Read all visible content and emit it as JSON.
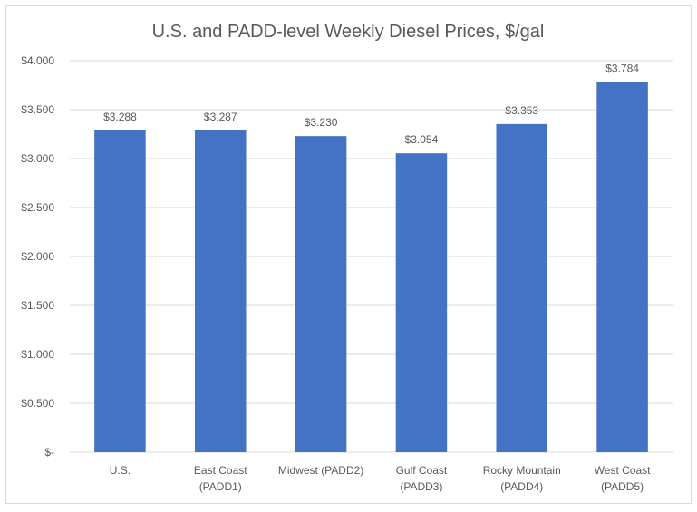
{
  "chart_data": {
    "type": "bar",
    "title": "U.S. and PADD-level  Weekly  Diesel  Prices, $/gal",
    "xlabel": "",
    "ylabel": "",
    "categories": [
      [
        "U.S."
      ],
      [
        "East Coast",
        "(PADD1)"
      ],
      [
        "Midwest (PADD2)"
      ],
      [
        "Gulf Coast",
        "(PADD3)"
      ],
      [
        "Rocky Mountain",
        "(PADD4)"
      ],
      [
        "West Coast",
        "(PADD5)"
      ]
    ],
    "values": [
      3.288,
      3.287,
      3.23,
      3.054,
      3.353,
      3.784
    ],
    "data_labels": [
      "$3.288",
      "$3.287",
      "$3.230",
      "$3.054",
      "$3.353",
      "$3.784"
    ],
    "ylim": [
      0,
      4.0
    ],
    "yticks": [
      0,
      0.5,
      1.0,
      1.5,
      2.0,
      2.5,
      3.0,
      3.5,
      4.0
    ],
    "ytick_labels": [
      "$-",
      "$0.500",
      "$1.000",
      "$1.500",
      "$2.000",
      "$2.500",
      "$3.000",
      "$3.500",
      "$4.000"
    ],
    "grid": true,
    "legend": "none",
    "colors": {
      "bar": "#4472C4",
      "grid": "#d9d9d9",
      "text": "#595959"
    }
  }
}
